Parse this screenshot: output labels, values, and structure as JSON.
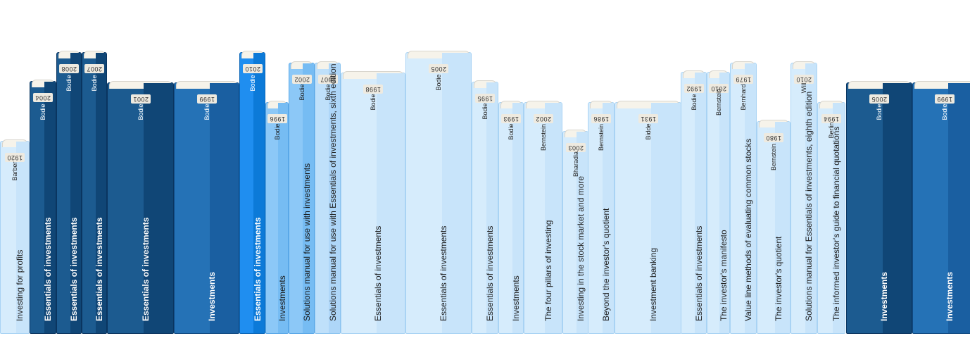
{
  "books": [
    {
      "title": "Investing for profits",
      "author": "Barber",
      "year": "1920",
      "theme": "light"
    },
    {
      "title": "Essentials of investments",
      "author": "Bodie",
      "year": "2004",
      "theme": "navy"
    },
    {
      "title": "Essentials of investments",
      "author": "Bodie",
      "year": "2008",
      "theme": "navy"
    },
    {
      "title": "Essentials of investments",
      "author": "Bodie",
      "year": "2007",
      "theme": "navy"
    },
    {
      "title": "Essentials of investments",
      "author": "Bodie",
      "year": "2001",
      "theme": "navy"
    },
    {
      "title": "Investments",
      "author": "Bodie",
      "year": "1999",
      "theme": "mid"
    },
    {
      "title": "Essentials of investments",
      "author": "Bodie",
      "year": "2010",
      "theme": "bright"
    },
    {
      "title": "Investments",
      "author": "Bodie",
      "year": "1996",
      "theme": "sky"
    },
    {
      "title": "Solutions manual for use with investments",
      "author": "Bodie",
      "year": "2002",
      "theme": "sky"
    },
    {
      "title": "Solutions manual for use with Essentials of investments, sixth edition",
      "author": "Bodie",
      "year": "2007",
      "theme": "pale"
    },
    {
      "title": "Essentials of investments",
      "author": "Bodie",
      "year": "1998",
      "theme": "light"
    },
    {
      "title": "Essentials of investments",
      "author": "Bodie",
      "year": "2005",
      "theme": "light"
    },
    {
      "title": "Essentials of investments",
      "author": "Bodie",
      "year": "1995",
      "theme": "light"
    },
    {
      "title": "Investments",
      "author": "Bodie",
      "year": "1993",
      "theme": "light"
    },
    {
      "title": "The four pillars of investing",
      "author": "Bernstein",
      "year": "2002",
      "theme": "light"
    },
    {
      "title": "Investing in the stock market and more",
      "author": "Bharadia",
      "year": "2003",
      "theme": "light"
    },
    {
      "title": "Beyond the investor's quotient",
      "author": "Bernstein",
      "year": "1986",
      "theme": "light"
    },
    {
      "title": "Investment banking",
      "author": "Bidde",
      "year": "1931",
      "theme": "light"
    },
    {
      "title": "Essentials of investments",
      "author": "Bodie",
      "year": "1992",
      "theme": "light"
    },
    {
      "title": "The investor's manifesto",
      "author": "Bernstein",
      "year": "2010",
      "theme": "light"
    },
    {
      "title": "Value line methods of evaluating common stocks",
      "author": "Bernhard",
      "year": "1979",
      "theme": "light"
    },
    {
      "title": "The investor's quotient",
      "author": "Bernstein",
      "year": "1980",
      "theme": "light"
    },
    {
      "title": "Solutions manual for Essentials of investments, eighth edition",
      "author": "Will",
      "year": "2010",
      "theme": "light"
    },
    {
      "title": "The informed investor's guide to financial quotations",
      "author": "Berlin",
      "year": "1994",
      "theme": "light"
    },
    {
      "title": "Investments",
      "author": "Bodie",
      "year": "2005",
      "theme": "navy"
    },
    {
      "title": "Investments",
      "author": "Bodie",
      "year": "1999",
      "theme": "mid"
    }
  ],
  "themes": {
    "light": {
      "base": "#d6ecfc",
      "shade": "#c8e4fa",
      "border": "#a9d3f4",
      "text": "#222222"
    },
    "pale": {
      "base": "#bfe0fa",
      "shade": "#aed6f8",
      "border": "#8cc4f0",
      "text": "#222222"
    },
    "sky": {
      "base": "#8cc8f7",
      "shade": "#76bcf3",
      "border": "#5aa8e8",
      "text": "#1a1a1a"
    },
    "bright": {
      "base": "#1f8ef0",
      "shade": "#0c7ad8",
      "border": "#0a66b8",
      "text": "#ffffff"
    },
    "mid": {
      "base": "#2572b6",
      "shade": "#1a5fa1",
      "border": "#104a82",
      "text": "#ffffff"
    },
    "navy": {
      "base": "#1c5b90",
      "shade": "#104676",
      "border": "#0a3560",
      "text": "#ffffff"
    }
  }
}
